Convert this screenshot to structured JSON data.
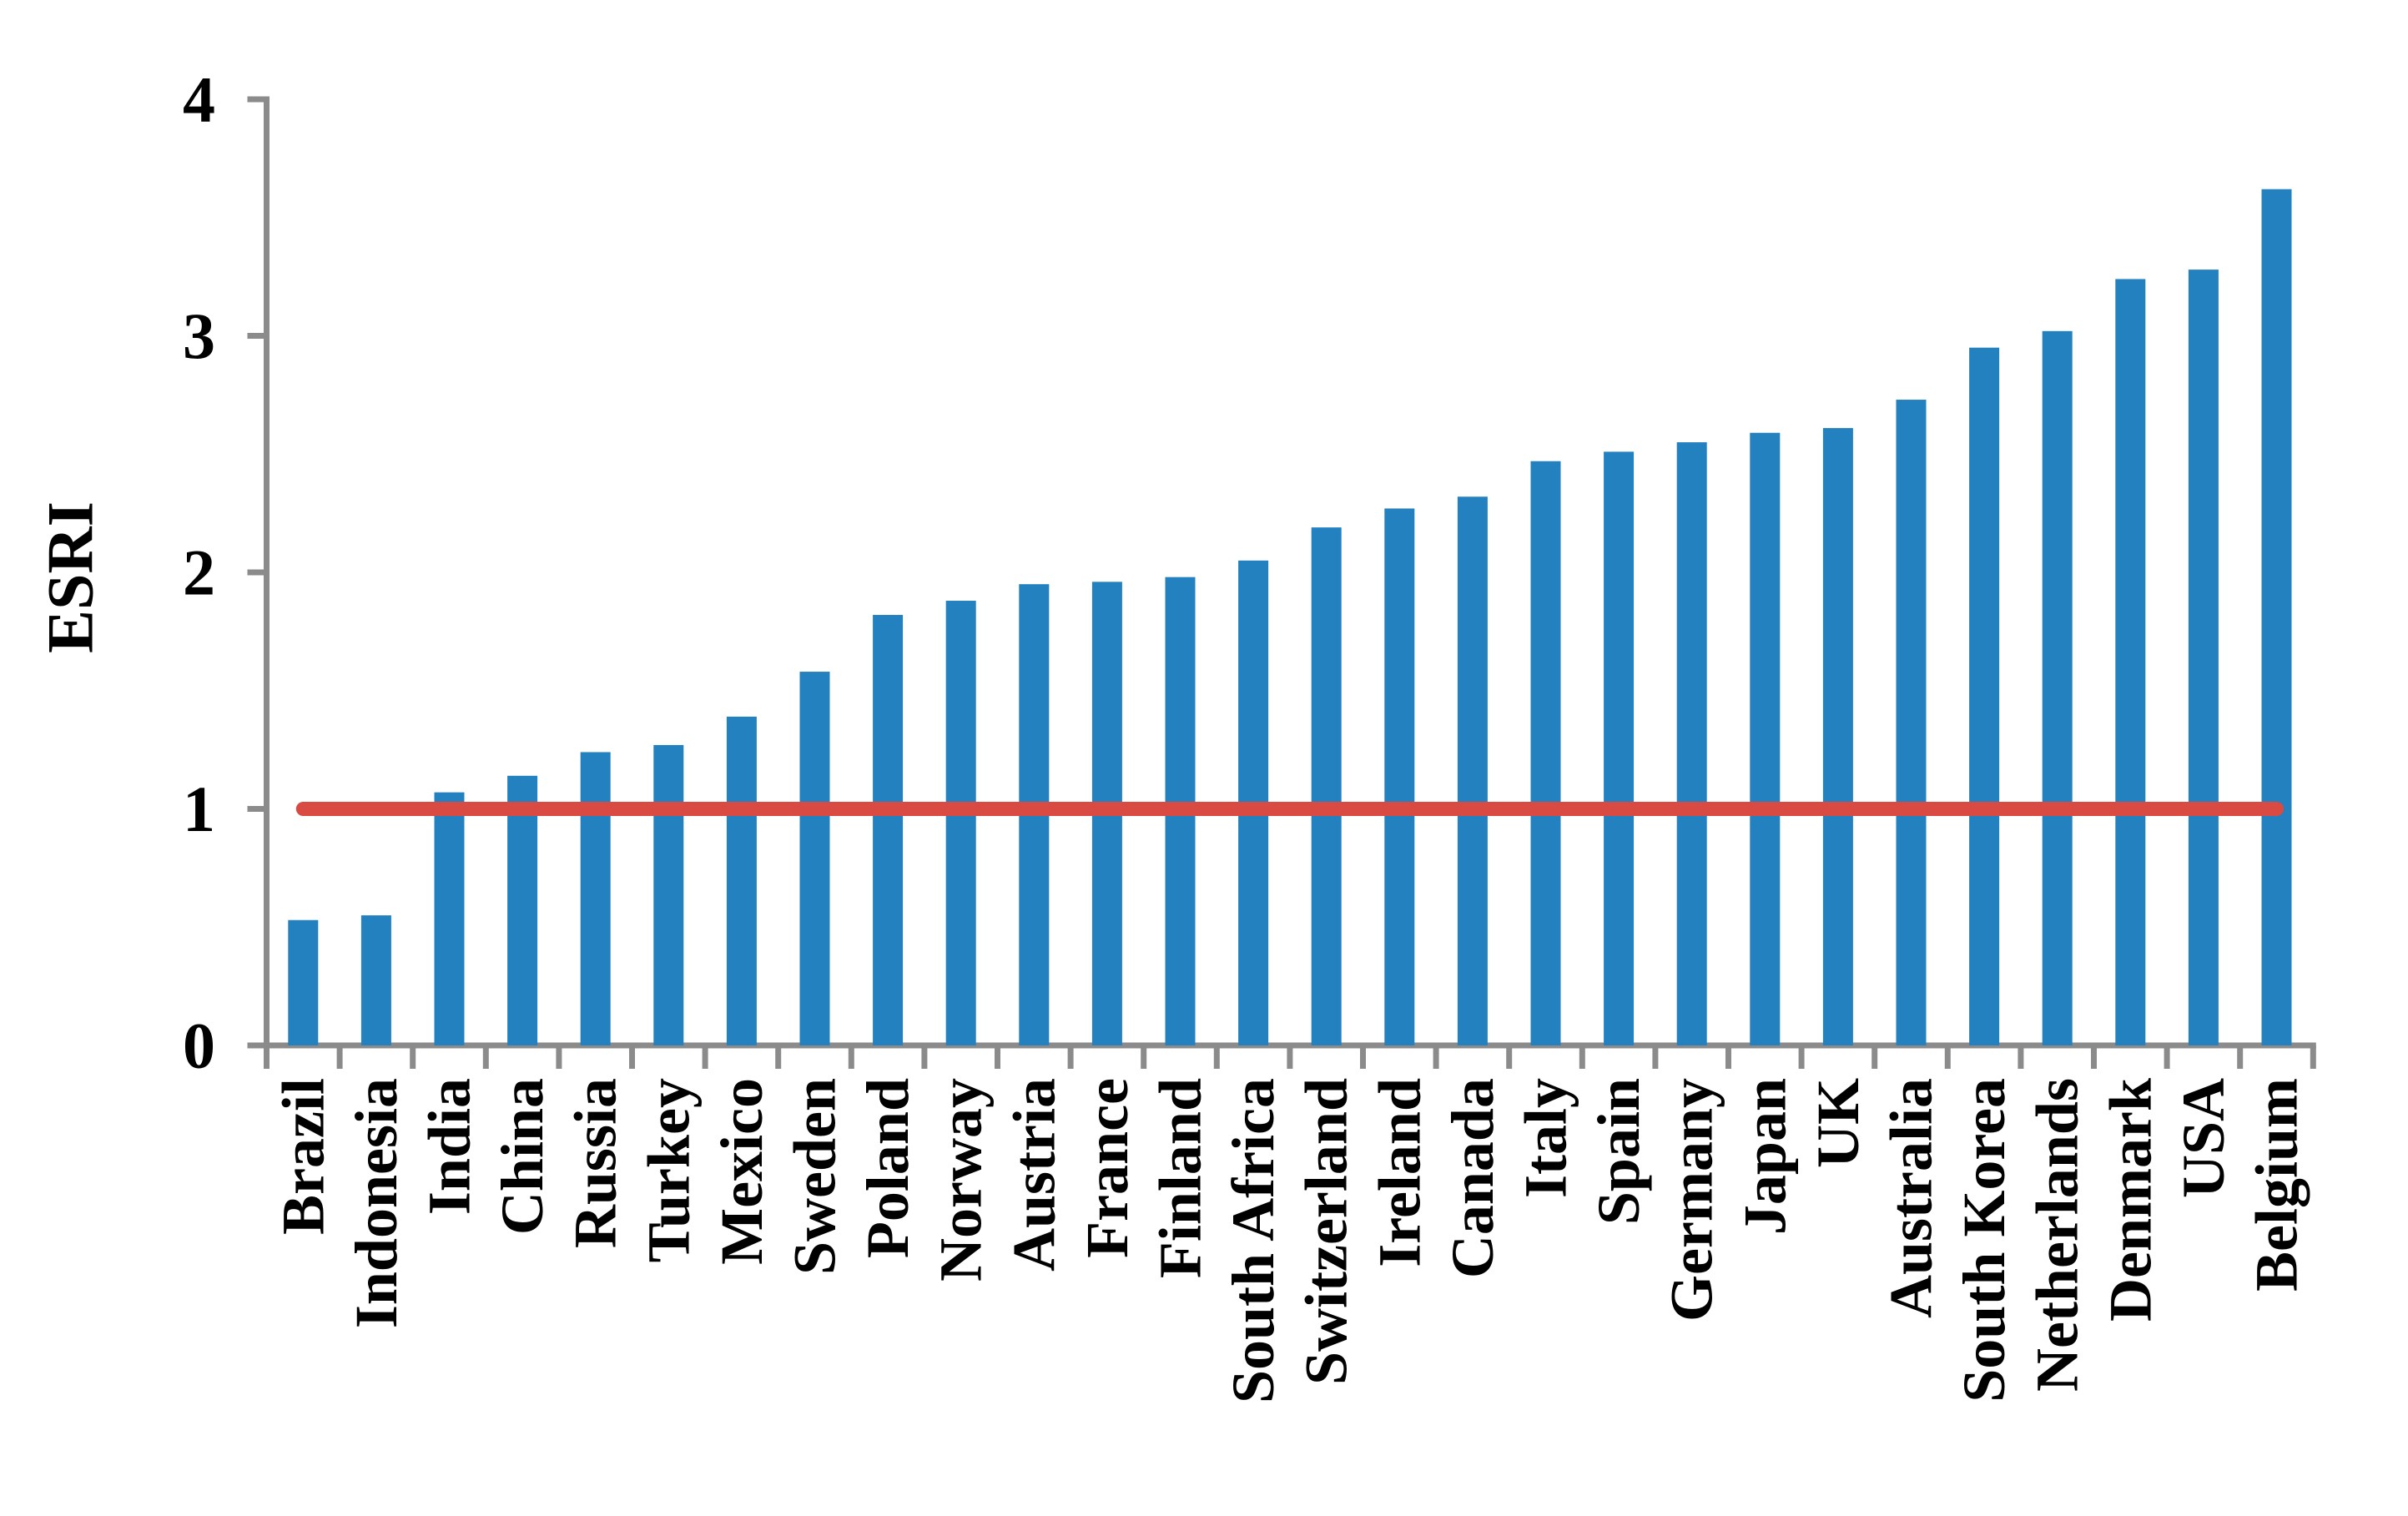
{
  "chart_data": {
    "type": "bar",
    "title": "",
    "ylabel": "ESRI",
    "xlabel": "",
    "categories": [
      "Brazil",
      "Indonesia",
      "India",
      "China",
      "Russia",
      "Turkey",
      "Mexico",
      "Sweden",
      "Poland",
      "Norway",
      "Austria",
      "France",
      "Finland",
      "South Africa",
      "Switzerland",
      "Ireland",
      "Canada",
      "Italy",
      "Spain",
      "Germany",
      "Japan",
      "UK",
      "Australia",
      "South Korea",
      "Netherlands",
      "Denmark",
      "USA",
      "Belgium"
    ],
    "values": [
      0.53,
      0.55,
      1.07,
      1.14,
      1.24,
      1.27,
      1.39,
      1.58,
      1.82,
      1.88,
      1.95,
      1.96,
      1.98,
      2.05,
      2.19,
      2.27,
      2.32,
      2.47,
      2.51,
      2.55,
      2.59,
      2.61,
      2.73,
      2.95,
      3.02,
      3.24,
      3.28,
      3.62
    ],
    "ylim": [
      0,
      4
    ],
    "yticks": [
      0,
      1,
      2,
      3,
      4
    ],
    "grid": false,
    "legend": null,
    "reference_line": {
      "value": 1,
      "color": "#d94a43"
    },
    "bar_color": "#2481bf",
    "axis_color": "#8b8b8b",
    "text_color": "#000000",
    "background": "#ffffff"
  }
}
